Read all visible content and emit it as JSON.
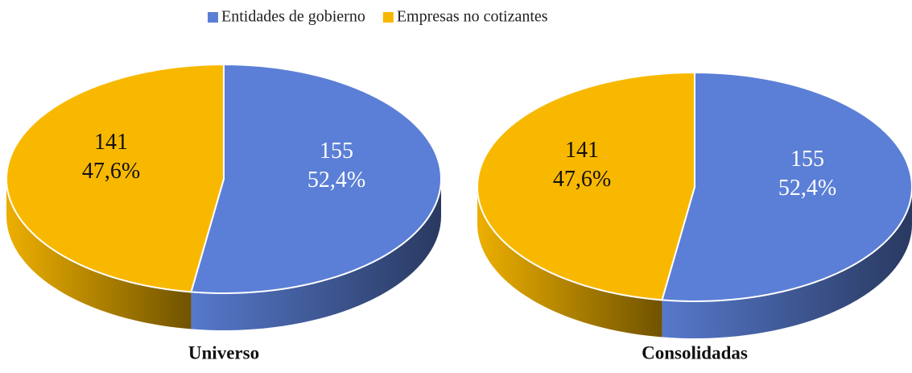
{
  "chart_data": [
    {
      "type": "pie",
      "title": "Universo",
      "categories": [
        "Entidades de gobierno",
        "Empresas no cotizantes"
      ],
      "values": [
        155,
        141
      ],
      "percents": [
        52.4,
        47.6
      ],
      "percent_labels": [
        "52,4%",
        "47,6%"
      ],
      "colors": [
        "#5b7fd6",
        "#f9b800"
      ],
      "legend": "top"
    },
    {
      "type": "pie",
      "title": "Consolidadas",
      "categories": [
        "Entidades de gobierno",
        "Empresas no cotizantes"
      ],
      "values": [
        155,
        141
      ],
      "percents": [
        52.4,
        47.6
      ],
      "percent_labels": [
        "52,4%",
        "47,6%"
      ],
      "colors": [
        "#5b7fd6",
        "#f9b800"
      ]
    }
  ]
}
